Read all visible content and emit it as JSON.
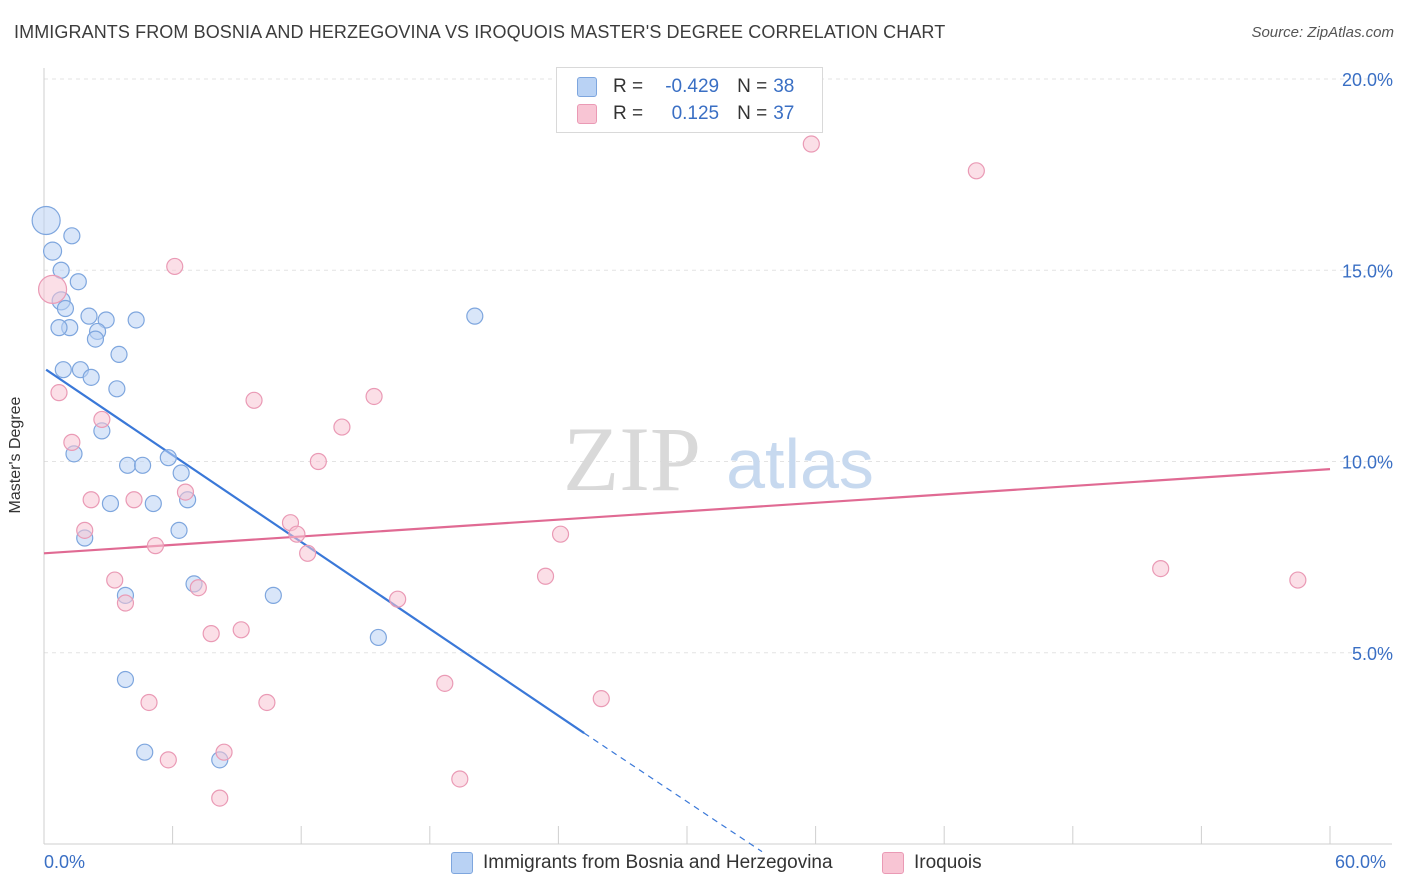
{
  "header": {
    "title": "IMMIGRANTS FROM BOSNIA AND HERZEGOVINA VS IROQUOIS MASTER'S DEGREE CORRELATION CHART",
    "source": "Source: ZipAtlas.com"
  },
  "watermark": {
    "zip": "ZIP",
    "atlas": "atlas"
  },
  "legend": {
    "rows": [
      {
        "r_label": "R =",
        "r_value": "-0.429",
        "n_label": "N =",
        "n_value": "38"
      },
      {
        "r_label": "R =",
        "r_value": "0.125",
        "n_label": "N =",
        "n_value": "37"
      }
    ]
  },
  "colors": {
    "blue": "#3a78d8",
    "blue_fill": "#b9d2f4",
    "pink": "#e06a93",
    "pink_fill": "#f8c5d4",
    "axis_text": "#3a6fc4",
    "grid": "#e3e3e3"
  },
  "chart_data": {
    "type": "scatter",
    "title": "IMMIGRANTS FROM BOSNIA AND HERZEGOVINA VS IROQUOIS MASTER'S DEGREE CORRELATION CHART",
    "xlabel": "",
    "ylabel": "Master's Degree",
    "xlim": [
      0,
      60
    ],
    "ylim": [
      0,
      20
    ],
    "x_tick_labels": [
      "0.0%",
      "60.0%"
    ],
    "y_ticks": [
      {
        "value": 5,
        "label": "5.0%"
      },
      {
        "value": 10,
        "label": "10.0%"
      },
      {
        "value": 15,
        "label": "15.0%"
      },
      {
        "value": 20,
        "label": "20.0%"
      }
    ],
    "series": [
      {
        "name": "Immigrants from Bosnia and Herzegovina",
        "color": "blue",
        "R": -0.429,
        "N": 38,
        "trend": {
          "x0": 0.1,
          "y0": 12.4,
          "x1": 25.2,
          "y1": 2.9,
          "dash_to_x": 33.5,
          "dash_to_y": -0.2
        },
        "points": [
          [
            0.1,
            16.3,
            14
          ],
          [
            0.4,
            15.5,
            9
          ],
          [
            0.8,
            14.2,
            9
          ],
          [
            1.3,
            15.9,
            8
          ],
          [
            0.8,
            15.0,
            8
          ],
          [
            1.6,
            14.7,
            8
          ],
          [
            1.0,
            14.0,
            8
          ],
          [
            1.2,
            13.5,
            8
          ],
          [
            2.1,
            13.8,
            8
          ],
          [
            2.9,
            13.7,
            8
          ],
          [
            4.3,
            13.7,
            8
          ],
          [
            2.5,
            13.4,
            8
          ],
          [
            2.4,
            13.2,
            8
          ],
          [
            3.5,
            12.8,
            8
          ],
          [
            1.7,
            12.4,
            8
          ],
          [
            0.9,
            12.4,
            8
          ],
          [
            2.2,
            12.2,
            8
          ],
          [
            3.4,
            11.9,
            8
          ],
          [
            20.1,
            13.8,
            8
          ],
          [
            2.7,
            10.8,
            8
          ],
          [
            1.4,
            10.2,
            8
          ],
          [
            3.9,
            9.9,
            8
          ],
          [
            4.6,
            9.9,
            8
          ],
          [
            5.8,
            10.1,
            8
          ],
          [
            6.4,
            9.7,
            8
          ],
          [
            6.7,
            9.0,
            8
          ],
          [
            3.1,
            8.9,
            8
          ],
          [
            5.1,
            8.9,
            8
          ],
          [
            6.3,
            8.2,
            8
          ],
          [
            1.9,
            8.0,
            8
          ],
          [
            7.0,
            6.8,
            8
          ],
          [
            3.8,
            6.5,
            8
          ],
          [
            10.7,
            6.5,
            8
          ],
          [
            15.6,
            5.4,
            8
          ],
          [
            3.8,
            4.3,
            8
          ],
          [
            4.7,
            2.4,
            8
          ],
          [
            8.2,
            2.2,
            8
          ],
          [
            0.7,
            13.5,
            8
          ]
        ]
      },
      {
        "name": "Iroquois",
        "color": "pink",
        "R": 0.125,
        "N": 37,
        "trend": {
          "x0": 0,
          "y0": 7.6,
          "x1": 60,
          "y1": 9.8
        },
        "points": [
          [
            0.4,
            14.5,
            14
          ],
          [
            35.8,
            18.3,
            8
          ],
          [
            43.5,
            17.6,
            8
          ],
          [
            6.1,
            15.1,
            8
          ],
          [
            0.7,
            11.8,
            8
          ],
          [
            9.8,
            11.6,
            8
          ],
          [
            15.4,
            11.7,
            8
          ],
          [
            13.9,
            10.9,
            8
          ],
          [
            2.7,
            11.1,
            8
          ],
          [
            1.3,
            10.5,
            8
          ],
          [
            12.8,
            10.0,
            8
          ],
          [
            2.2,
            9.0,
            8
          ],
          [
            4.2,
            9.0,
            8
          ],
          [
            6.6,
            9.2,
            8
          ],
          [
            11.5,
            8.4,
            8
          ],
          [
            1.9,
            8.2,
            8
          ],
          [
            11.8,
            8.1,
            8
          ],
          [
            24.1,
            8.1,
            8
          ],
          [
            5.2,
            7.8,
            8
          ],
          [
            12.3,
            7.6,
            8
          ],
          [
            23.4,
            7.0,
            8
          ],
          [
            52.1,
            7.2,
            8
          ],
          [
            58.5,
            6.9,
            8
          ],
          [
            3.3,
            6.9,
            8
          ],
          [
            7.2,
            6.7,
            8
          ],
          [
            3.8,
            6.3,
            8
          ],
          [
            16.5,
            6.4,
            8
          ],
          [
            9.2,
            5.6,
            8
          ],
          [
            7.8,
            5.5,
            8
          ],
          [
            18.7,
            4.2,
            8
          ],
          [
            26.0,
            3.8,
            8
          ],
          [
            4.9,
            3.7,
            8
          ],
          [
            10.4,
            3.7,
            8
          ],
          [
            8.4,
            2.4,
            8
          ],
          [
            5.8,
            2.2,
            8
          ],
          [
            19.4,
            1.7,
            8
          ],
          [
            8.2,
            1.2,
            8
          ]
        ]
      }
    ]
  },
  "bottom_legend": {
    "blue_label": "Immigrants from Bosnia and Herzegovina",
    "pink_label": "Iroquois"
  }
}
